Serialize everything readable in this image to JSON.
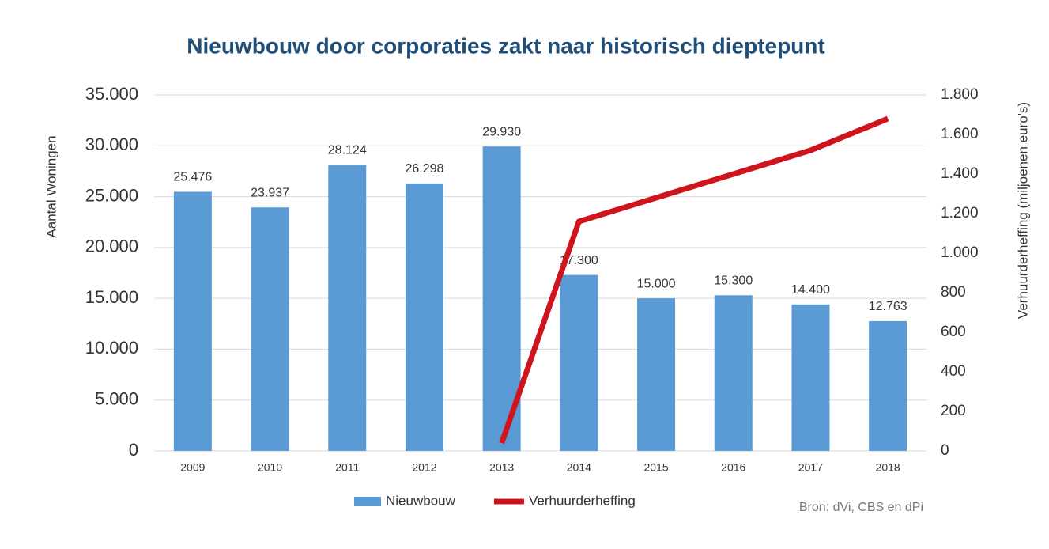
{
  "chart_data": {
    "type": "bar",
    "title": "Nieuwbouw door corporaties zakt naar historisch dieptepunt",
    "y_label": "Aantal Woningen",
    "y2_label": "Verhuurderheffing  (miljoenen euro's)",
    "source": "Bron: dVi, CBS en dPi",
    "categories": [
      "2009",
      "2010",
      "2011",
      "2012",
      "2013",
      "2014",
      "2015",
      "2016",
      "2017",
      "2018"
    ],
    "series": [
      {
        "name": "Nieuwbouw",
        "type": "bar",
        "color": "#5b9bd5",
        "values": [
          25476,
          23937,
          28124,
          26298,
          29930,
          17300,
          15000,
          15300,
          14400,
          12763
        ],
        "value_labels": [
          "25.476",
          "23.937",
          "28.124",
          "26.298",
          "29.930",
          "17.300",
          "15.000",
          "15.300",
          "14.400",
          "12.763"
        ]
      },
      {
        "name": "Verhuurderheffing",
        "type": "line",
        "axis": "y2",
        "color": "#d0141c",
        "values": [
          null,
          null,
          null,
          null,
          40,
          1160,
          1280,
          1400,
          1520,
          1680
        ]
      }
    ],
    "ylim": [
      0,
      35000
    ],
    "yticks": [
      0,
      {
        "value": 5000,
        "label": "5.000"
      },
      {
        "value": 10000,
        "label": "10.000"
      },
      {
        "value": 15000,
        "label": "15.000"
      },
      {
        "value": 20000,
        "label": "20.000"
      },
      {
        "value": 25000,
        "label": "25.000"
      },
      {
        "value": 30000,
        "label": "30.000"
      },
      {
        "value": 35000,
        "label": "35.000"
      }
    ],
    "y2lim": [
      0,
      1800
    ],
    "y2ticks": [
      0,
      200,
      400,
      600,
      800,
      {
        "value": 1000,
        "label": "1.000"
      },
      {
        "value": 1200,
        "label": "1.200"
      },
      {
        "value": 1400,
        "label": "1.400"
      },
      {
        "value": 1600,
        "label": "1.600"
      },
      {
        "value": 1800,
        "label": "1.800"
      }
    ],
    "grid": true,
    "legend": "bottom"
  }
}
